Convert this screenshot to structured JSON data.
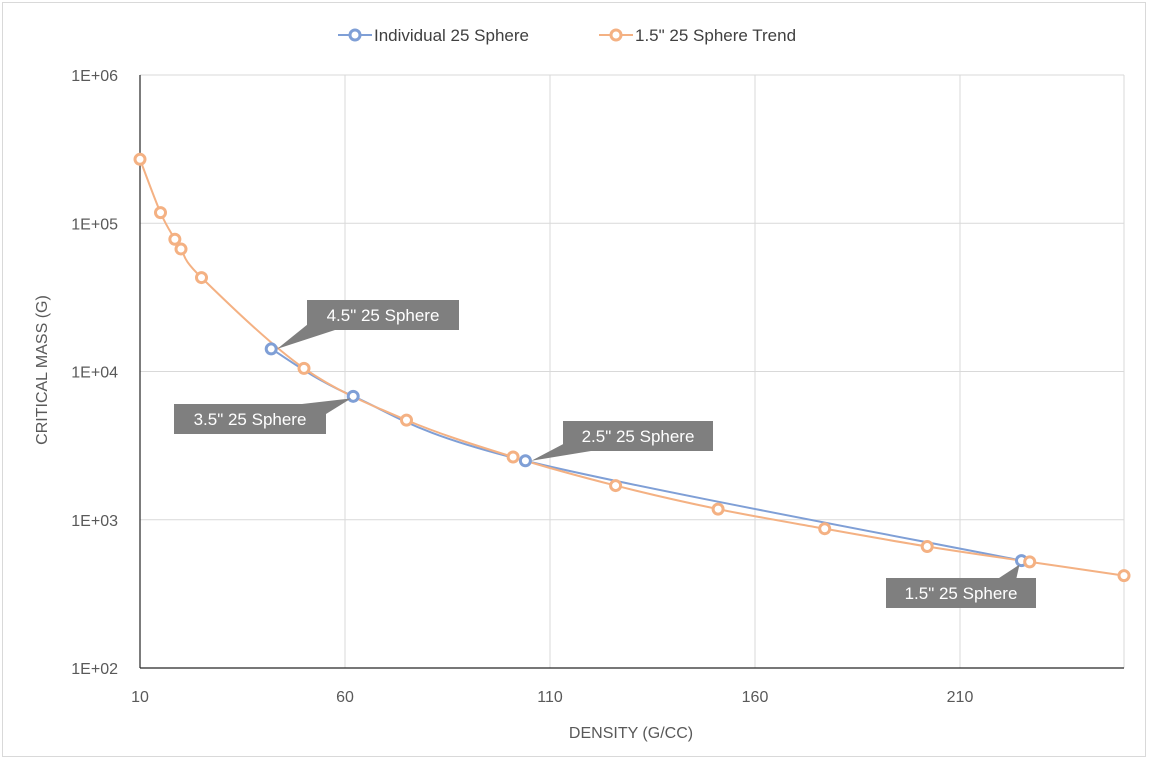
{
  "chart_data": {
    "type": "line",
    "title": "",
    "xlabel": "DENSITY (G/CC)",
    "ylabel": "CRITICAL MASS (G)",
    "x_ticks": [
      10,
      60,
      110,
      160,
      210
    ],
    "x_tick_labels": [
      "10",
      "60",
      "110",
      "160",
      "210"
    ],
    "xlim": [
      10,
      250
    ],
    "y_scale": "log",
    "y_ticks": [
      100,
      1000,
      10000,
      100000,
      1000000
    ],
    "y_tick_labels": [
      "1E+02",
      "1E+03",
      "1E+04",
      "1E+05",
      "1E+06"
    ],
    "ylim": [
      100,
      1000000
    ],
    "grid": true,
    "legend_position": "top",
    "series": [
      {
        "name": "Individual 25 Sphere",
        "color": "#7f9fd6",
        "x": [
          42,
          62,
          104,
          225
        ],
        "y": [
          14200,
          6800,
          2500,
          530
        ]
      },
      {
        "name": "1.5\" 25 Sphere Trend",
        "color": "#f4b183",
        "x": [
          10,
          15,
          18.5,
          20,
          25,
          50,
          75,
          101,
          126,
          151,
          177,
          202,
          227,
          250
        ],
        "y": [
          270000,
          118000,
          78000,
          67000,
          43000,
          10500,
          4700,
          2650,
          1700,
          1180,
          870,
          660,
          520,
          420
        ]
      }
    ],
    "annotations": [
      {
        "text": "4.5\" 25 Sphere",
        "x": 42,
        "y": 14200
      },
      {
        "text": "3.5\" 25 Sphere",
        "x": 62,
        "y": 6800
      },
      {
        "text": "2.5\" 25 Sphere",
        "x": 104,
        "y": 2500
      },
      {
        "text": "1.5\" 25 Sphere",
        "x": 225,
        "y": 530
      }
    ]
  }
}
